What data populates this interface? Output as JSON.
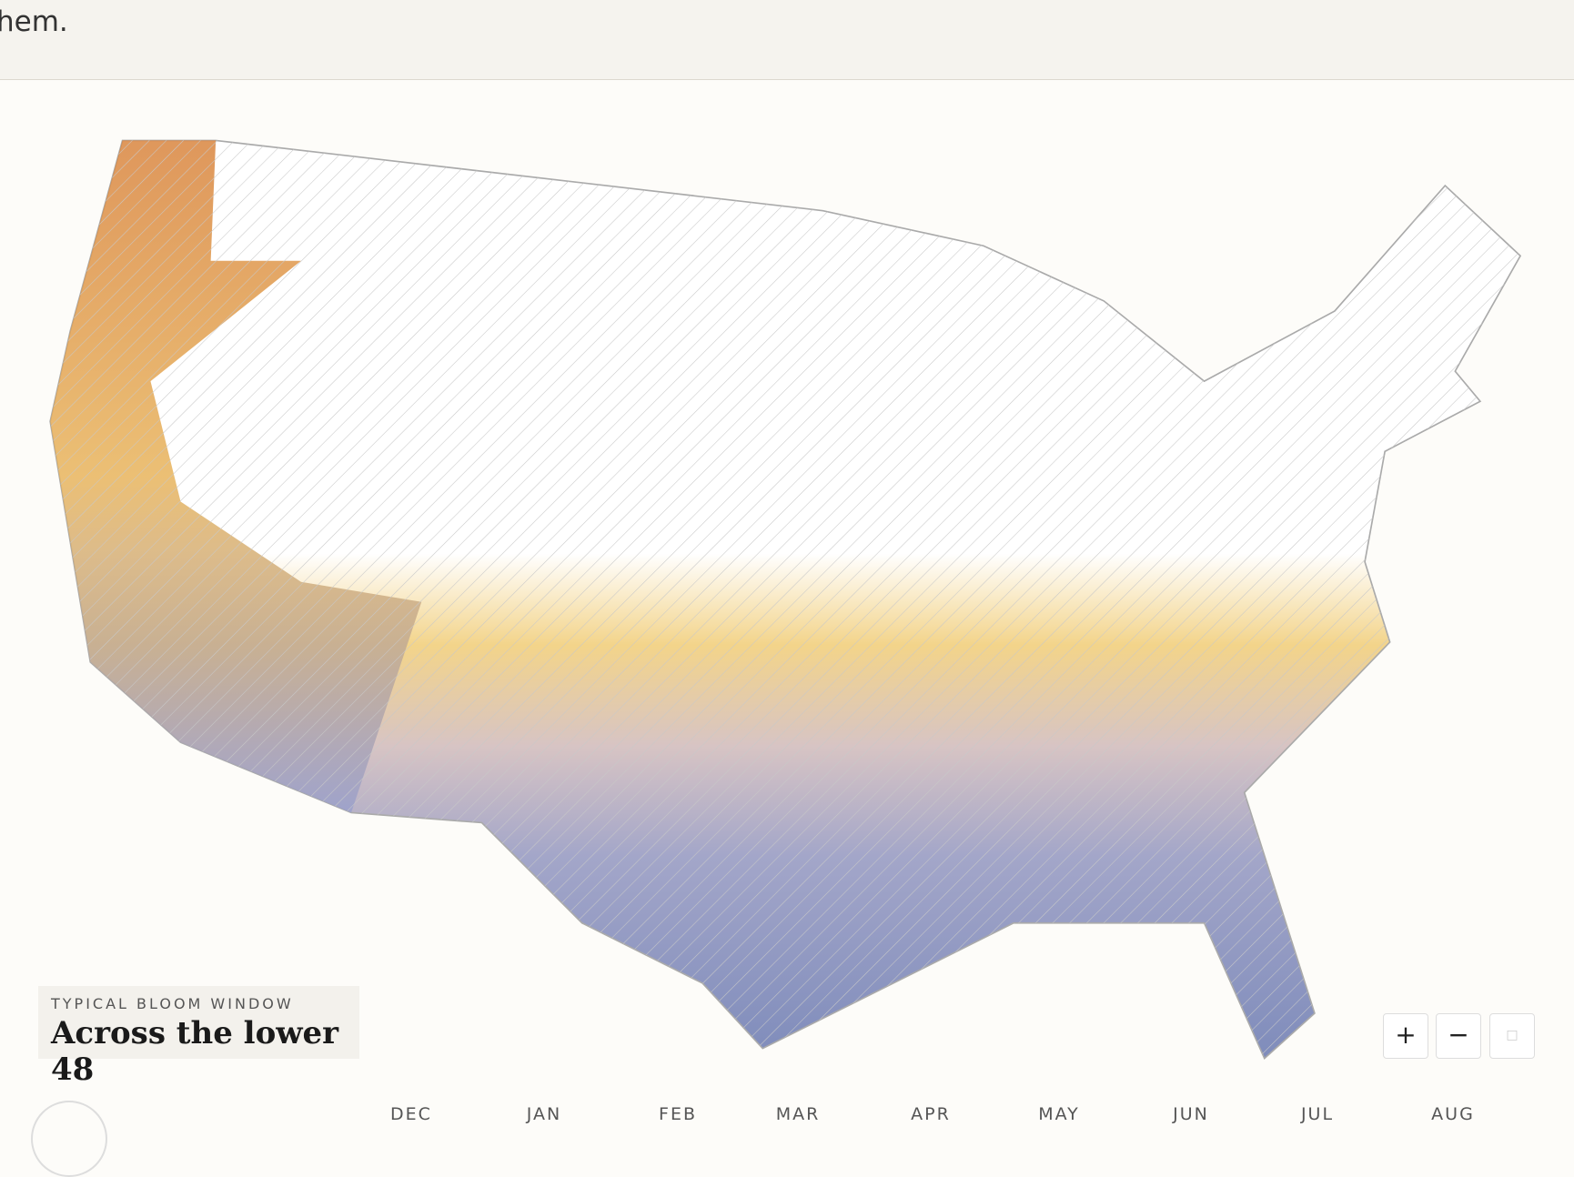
{
  "header": {
    "text": "hem."
  },
  "legend": {
    "kicker": "TYPICAL BLOOM WINDOW",
    "title": "Across the lower 48"
  },
  "controls": [
    "+",
    "−"
  ],
  "timeline": {
    "months": [
      "DEC",
      "JAN",
      "FEB",
      "MAR",
      "APR",
      "MAY",
      "JUN",
      "JUL",
      "AUG"
    ]
  }
}
